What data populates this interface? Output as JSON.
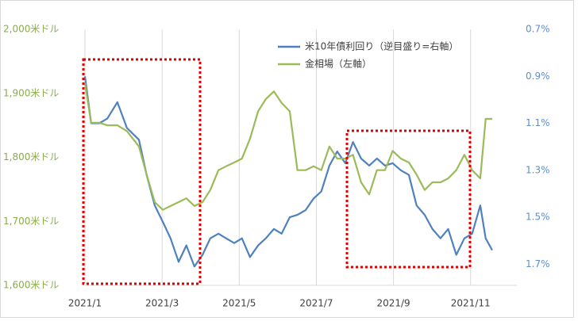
{
  "chart_data": {
    "type": "line",
    "xlim": [
      0,
      11.2
    ],
    "xticks": [
      {
        "value": 0,
        "label": "2021/1"
      },
      {
        "value": 2,
        "label": "2021/3"
      },
      {
        "value": 4,
        "label": "2021/5"
      },
      {
        "value": 6,
        "label": "2021/7"
      },
      {
        "value": 8,
        "label": "2021/9"
      },
      {
        "value": 10,
        "label": "2021/11"
      }
    ],
    "ylim": [
      1600,
      2000
    ],
    "yticks": [
      {
        "value": 1600,
        "label": "1,600米ドル"
      },
      {
        "value": 1700,
        "label": "1,700米ドル"
      },
      {
        "value": 1800,
        "label": "1,800米ドル"
      },
      {
        "value": 1900,
        "label": "1,900米ドル"
      },
      {
        "value": 2000,
        "label": "2,000米ドル"
      }
    ],
    "y2lim": [
      0.7,
      1.79
    ],
    "y2_inverted": true,
    "y2ticks": [
      {
        "value": 0.7,
        "label": "0.7%"
      },
      {
        "value": 0.9,
        "label": "0.9%"
      },
      {
        "value": 1.1,
        "label": "1.1%"
      },
      {
        "value": 1.3,
        "label": "1.3%"
      },
      {
        "value": 1.5,
        "label": "1.5%"
      },
      {
        "value": 1.7,
        "label": "1.7%"
      }
    ],
    "grid": "x",
    "y_color": "#8aac4a",
    "y2_color": "#5b8fd0",
    "x": [
      0,
      0.16,
      0.37,
      0.58,
      0.84,
      1.09,
      1.4,
      1.6,
      1.81,
      2.02,
      2.22,
      2.43,
      2.63,
      2.84,
      3.05,
      3.25,
      3.46,
      3.66,
      3.87,
      4.07,
      4.28,
      4.49,
      4.69,
      4.9,
      5.1,
      5.31,
      5.51,
      5.72,
      5.93,
      6.13,
      6.34,
      6.54,
      6.75,
      6.95,
      7.16,
      7.37,
      7.57,
      7.78,
      7.98,
      8.19,
      8.4,
      8.6,
      8.81,
      9.01,
      9.22,
      9.42,
      9.63,
      9.84,
      10.04,
      10.25,
      10.39,
      10.56
    ],
    "series": [
      {
        "name": "米10年債利回り（逆目盛り=右軸）",
        "color": "#4f81bd",
        "axis": "y2",
        "values": [
          0.9,
          1.1,
          1.1,
          1.08,
          1.01,
          1.12,
          1.17,
          1.32,
          1.45,
          1.52,
          1.59,
          1.69,
          1.62,
          1.71,
          1.66,
          1.59,
          1.57,
          1.59,
          1.61,
          1.59,
          1.67,
          1.62,
          1.59,
          1.55,
          1.57,
          1.5,
          1.49,
          1.47,
          1.42,
          1.39,
          1.28,
          1.22,
          1.27,
          1.18,
          1.25,
          1.28,
          1.25,
          1.28,
          1.27,
          1.3,
          1.32,
          1.45,
          1.49,
          1.55,
          1.59,
          1.55,
          1.66,
          1.59,
          1.57,
          1.45,
          1.59,
          1.64
        ]
      },
      {
        "name": "金相場（左軸）",
        "color": "#9bbb59",
        "values": [
          1916,
          1854,
          1854,
          1850,
          1850,
          1841,
          1817,
          1773,
          1730,
          1718,
          1724,
          1730,
          1736,
          1724,
          1730,
          1749,
          1780,
          1786,
          1792,
          1798,
          1829,
          1872,
          1891,
          1903,
          1885,
          1872,
          1780,
          1780,
          1786,
          1780,
          1817,
          1798,
          1798,
          1804,
          1761,
          1742,
          1780,
          1780,
          1810,
          1798,
          1792,
          1773,
          1749,
          1761,
          1761,
          1767,
          1780,
          1804,
          1780,
          1767,
          1860,
          1860
        ]
      }
    ]
  }
}
